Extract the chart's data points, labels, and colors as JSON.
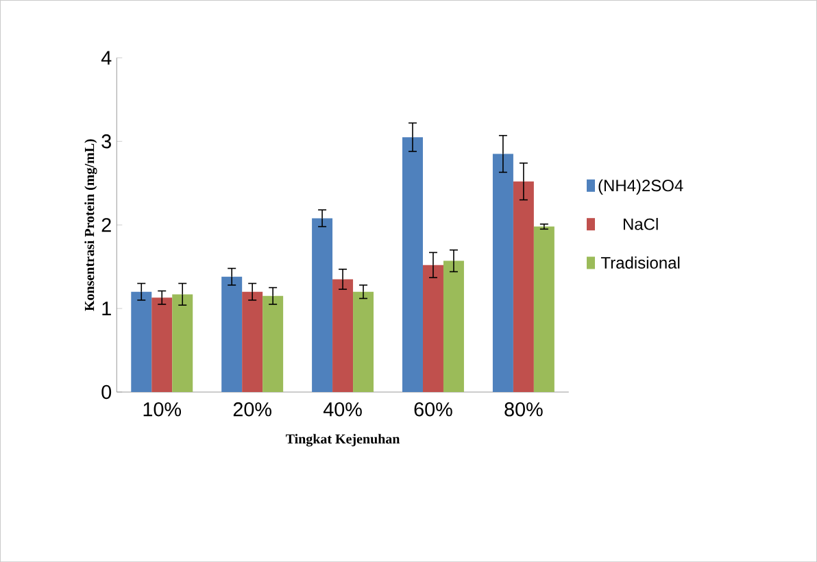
{
  "chart_data": {
    "type": "bar",
    "xlabel": "Tingkat Kejenuhan",
    "ylabel": "Konsentrasi Protein (mg/mL)",
    "categories": [
      "10%",
      "20%",
      "40%",
      "60%",
      "80%"
    ],
    "series": [
      {
        "name": "(NH4)2SO4",
        "color": "#4f81bd",
        "values": [
          1.2,
          1.38,
          2.08,
          3.05,
          2.85
        ],
        "errors": [
          0.1,
          0.1,
          0.1,
          0.17,
          0.22
        ]
      },
      {
        "name": "NaCl",
        "color": "#c0504d",
        "values": [
          1.13,
          1.2,
          1.35,
          1.52,
          2.52
        ],
        "errors": [
          0.08,
          0.1,
          0.12,
          0.15,
          0.22
        ]
      },
      {
        "name": "Tradisional",
        "color": "#9bbb59",
        "values": [
          1.17,
          1.15,
          1.2,
          1.57,
          1.98
        ],
        "errors": [
          0.13,
          0.1,
          0.08,
          0.13,
          0.03
        ]
      }
    ],
    "ylim": [
      0,
      4
    ],
    "yticks": [
      0,
      1,
      2,
      3,
      4
    ],
    "grid": false,
    "legend": "right"
  }
}
